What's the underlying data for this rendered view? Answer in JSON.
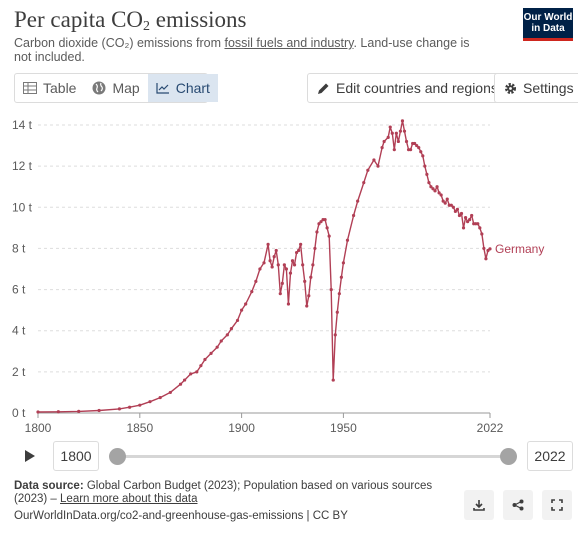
{
  "header": {
    "title_main": "Per capita CO",
    "title_sub": "2",
    "title_end": " emissions",
    "subtitle_pre": "Carbon dioxide (CO₂) emissions from ",
    "subtitle_link": "fossil fuels and industry",
    "subtitle_post": ". Land-use change is not included.",
    "logo_line1": "Our World",
    "logo_line2": "in Data"
  },
  "tabs": [
    {
      "label": "Table",
      "icon": "table-icon"
    },
    {
      "label": "Map",
      "icon": "globe-icon"
    },
    {
      "label": "Chart",
      "icon": "line-chart-icon",
      "active": true
    }
  ],
  "toolbar": {
    "edit_label": "Edit countries and regions",
    "settings_label": "Settings"
  },
  "timeline": {
    "start_year": "1800",
    "end_year": "2022"
  },
  "footer": {
    "source_label": "Data source:",
    "source_text": " Global Carbon Budget (2023); Population based on various sources (2023) – ",
    "source_link": "Learn more about this data",
    "url": "OurWorldInData.org/co2-and-greenhouse-gas-emissions | CC BY"
  },
  "colors": {
    "series": "#b13f55",
    "active_tab_bg": "#dbe5f0",
    "logo_bg": "#002147"
  },
  "chart_data": {
    "type": "line",
    "xlim": [
      1800,
      2022
    ],
    "ylim": [
      0,
      14
    ],
    "x_ticks": [
      1800,
      1850,
      1900,
      1950,
      2022
    ],
    "y_ticks": [
      0,
      2,
      4,
      6,
      8,
      10,
      12,
      14
    ],
    "y_tick_labels": [
      "0 t",
      "2 t",
      "4 t",
      "6 t",
      "8 t",
      "10 t",
      "12 t",
      "14 t"
    ],
    "grid": "horizontal",
    "series": [
      {
        "name": "Germany",
        "points": [
          [
            1800,
            0.05
          ],
          [
            1810,
            0.06
          ],
          [
            1820,
            0.08
          ],
          [
            1830,
            0.12
          ],
          [
            1840,
            0.2
          ],
          [
            1845,
            0.28
          ],
          [
            1850,
            0.38
          ],
          [
            1855,
            0.55
          ],
          [
            1860,
            0.75
          ],
          [
            1865,
            1.0
          ],
          [
            1870,
            1.4
          ],
          [
            1872,
            1.6
          ],
          [
            1875,
            1.9
          ],
          [
            1878,
            2.0
          ],
          [
            1880,
            2.3
          ],
          [
            1882,
            2.6
          ],
          [
            1885,
            2.9
          ],
          [
            1888,
            3.2
          ],
          [
            1890,
            3.5
          ],
          [
            1893,
            3.8
          ],
          [
            1895,
            4.1
          ],
          [
            1898,
            4.5
          ],
          [
            1900,
            5.0
          ],
          [
            1902,
            5.3
          ],
          [
            1905,
            5.9
          ],
          [
            1907,
            6.4
          ],
          [
            1909,
            7.0
          ],
          [
            1911,
            7.3
          ],
          [
            1913,
            8.2
          ],
          [
            1914,
            7.4
          ],
          [
            1915,
            7.1
          ],
          [
            1916,
            7.6
          ],
          [
            1917,
            7.9
          ],
          [
            1918,
            7.2
          ],
          [
            1919,
            5.8
          ],
          [
            1920,
            6.3
          ],
          [
            1921,
            7.2
          ],
          [
            1922,
            7.0
          ],
          [
            1923,
            5.3
          ],
          [
            1924,
            6.8
          ],
          [
            1925,
            7.4
          ],
          [
            1926,
            7.2
          ],
          [
            1927,
            7.8
          ],
          [
            1928,
            7.9
          ],
          [
            1929,
            8.2
          ],
          [
            1930,
            7.2
          ],
          [
            1931,
            6.4
          ],
          [
            1932,
            5.2
          ],
          [
            1933,
            5.7
          ],
          [
            1934,
            6.6
          ],
          [
            1935,
            7.2
          ],
          [
            1936,
            8.0
          ],
          [
            1937,
            8.8
          ],
          [
            1938,
            9.2
          ],
          [
            1939,
            9.3
          ],
          [
            1940,
            9.4
          ],
          [
            1941,
            9.4
          ],
          [
            1942,
            9.0
          ],
          [
            1943,
            8.6
          ],
          [
            1944,
            6.0
          ],
          [
            1945,
            1.6
          ],
          [
            1946,
            3.8
          ],
          [
            1947,
            4.9
          ],
          [
            1948,
            5.8
          ],
          [
            1949,
            6.6
          ],
          [
            1950,
            7.3
          ],
          [
            1952,
            8.4
          ],
          [
            1955,
            9.6
          ],
          [
            1957,
            10.3
          ],
          [
            1960,
            11.2
          ],
          [
            1962,
            11.8
          ],
          [
            1965,
            12.3
          ],
          [
            1967,
            12.0
          ],
          [
            1969,
            12.9
          ],
          [
            1970,
            13.2
          ],
          [
            1972,
            13.4
          ],
          [
            1973,
            13.9
          ],
          [
            1974,
            13.6
          ],
          [
            1975,
            12.8
          ],
          [
            1976,
            13.6
          ],
          [
            1977,
            13.2
          ],
          [
            1978,
            13.7
          ],
          [
            1979,
            14.2
          ],
          [
            1980,
            13.7
          ],
          [
            1981,
            13.2
          ],
          [
            1982,
            12.8
          ],
          [
            1983,
            12.8
          ],
          [
            1984,
            13.1
          ],
          [
            1985,
            13.1
          ],
          [
            1986,
            13.0
          ],
          [
            1987,
            12.9
          ],
          [
            1988,
            12.7
          ],
          [
            1989,
            12.5
          ],
          [
            1990,
            12.0
          ],
          [
            1991,
            11.6
          ],
          [
            1992,
            11.2
          ],
          [
            1993,
            11.0
          ],
          [
            1994,
            10.9
          ],
          [
            1995,
            10.8
          ],
          [
            1996,
            11.0
          ],
          [
            1997,
            10.7
          ],
          [
            1998,
            10.6
          ],
          [
            1999,
            10.3
          ],
          [
            2000,
            10.2
          ],
          [
            2001,
            10.4
          ],
          [
            2002,
            10.1
          ],
          [
            2003,
            10.1
          ],
          [
            2004,
            10.0
          ],
          [
            2005,
            9.8
          ],
          [
            2006,
            9.9
          ],
          [
            2007,
            9.6
          ],
          [
            2008,
            9.7
          ],
          [
            2009,
            9.0
          ],
          [
            2010,
            9.5
          ],
          [
            2011,
            9.3
          ],
          [
            2012,
            9.4
          ],
          [
            2013,
            9.6
          ],
          [
            2014,
            9.2
          ],
          [
            2015,
            9.2
          ],
          [
            2016,
            9.2
          ],
          [
            2017,
            9.0
          ],
          [
            2018,
            8.7
          ],
          [
            2019,
            8.0
          ],
          [
            2020,
            7.5
          ],
          [
            2021,
            7.9
          ],
          [
            2022,
            7.98
          ]
        ]
      }
    ]
  }
}
